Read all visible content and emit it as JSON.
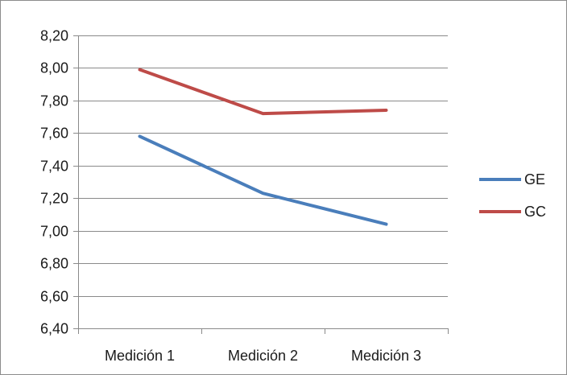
{
  "chart_data": {
    "type": "line",
    "categories": [
      "Medición 1",
      "Medición 2",
      "Medición 3"
    ],
    "series": [
      {
        "name": "GE",
        "values": [
          7.58,
          7.23,
          7.04
        ],
        "color": "#4a7ebb"
      },
      {
        "name": "GC",
        "values": [
          7.99,
          7.72,
          7.74
        ],
        "color": "#be4b48"
      }
    ],
    "y_ticks": [
      "8,20",
      "8,00",
      "7,80",
      "7,60",
      "7,40",
      "7,20",
      "7,00",
      "6,80",
      "6,60",
      "6,40"
    ],
    "ylim": [
      6.4,
      8.2
    ],
    "y_step": 0.2,
    "grid": true,
    "legend": "right",
    "title": "",
    "xlabel": "",
    "ylabel": ""
  }
}
